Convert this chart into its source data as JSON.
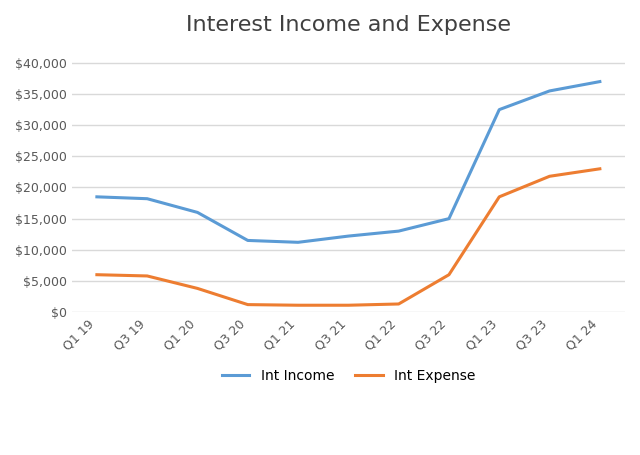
{
  "title": "Interest Income and Expense",
  "categories": [
    "Q1 19",
    "Q3 19",
    "Q1 20",
    "Q3 20",
    "Q1 21",
    "Q3 21",
    "Q1 22",
    "Q3 22",
    "Q1 23",
    "Q3 23",
    "Q1 24"
  ],
  "int_income": [
    18500,
    18200,
    16000,
    11500,
    11200,
    12200,
    13000,
    15000,
    32500,
    35500,
    37000
  ],
  "int_expense": [
    6000,
    5800,
    3800,
    1200,
    1100,
    1100,
    1300,
    6000,
    18500,
    21800,
    23000
  ],
  "income_color": "#5B9BD5",
  "expense_color": "#ED7D31",
  "background_color": "#FFFFFF",
  "plot_bg_color": "#FFFFFF",
  "grid_color": "#D9D9D9",
  "ylim": [
    0,
    42000
  ],
  "yticks": [
    0,
    5000,
    10000,
    15000,
    20000,
    25000,
    30000,
    35000,
    40000
  ],
  "legend_labels": [
    "Int Income",
    "Int Expense"
  ],
  "title_fontsize": 16,
  "tick_fontsize": 9
}
